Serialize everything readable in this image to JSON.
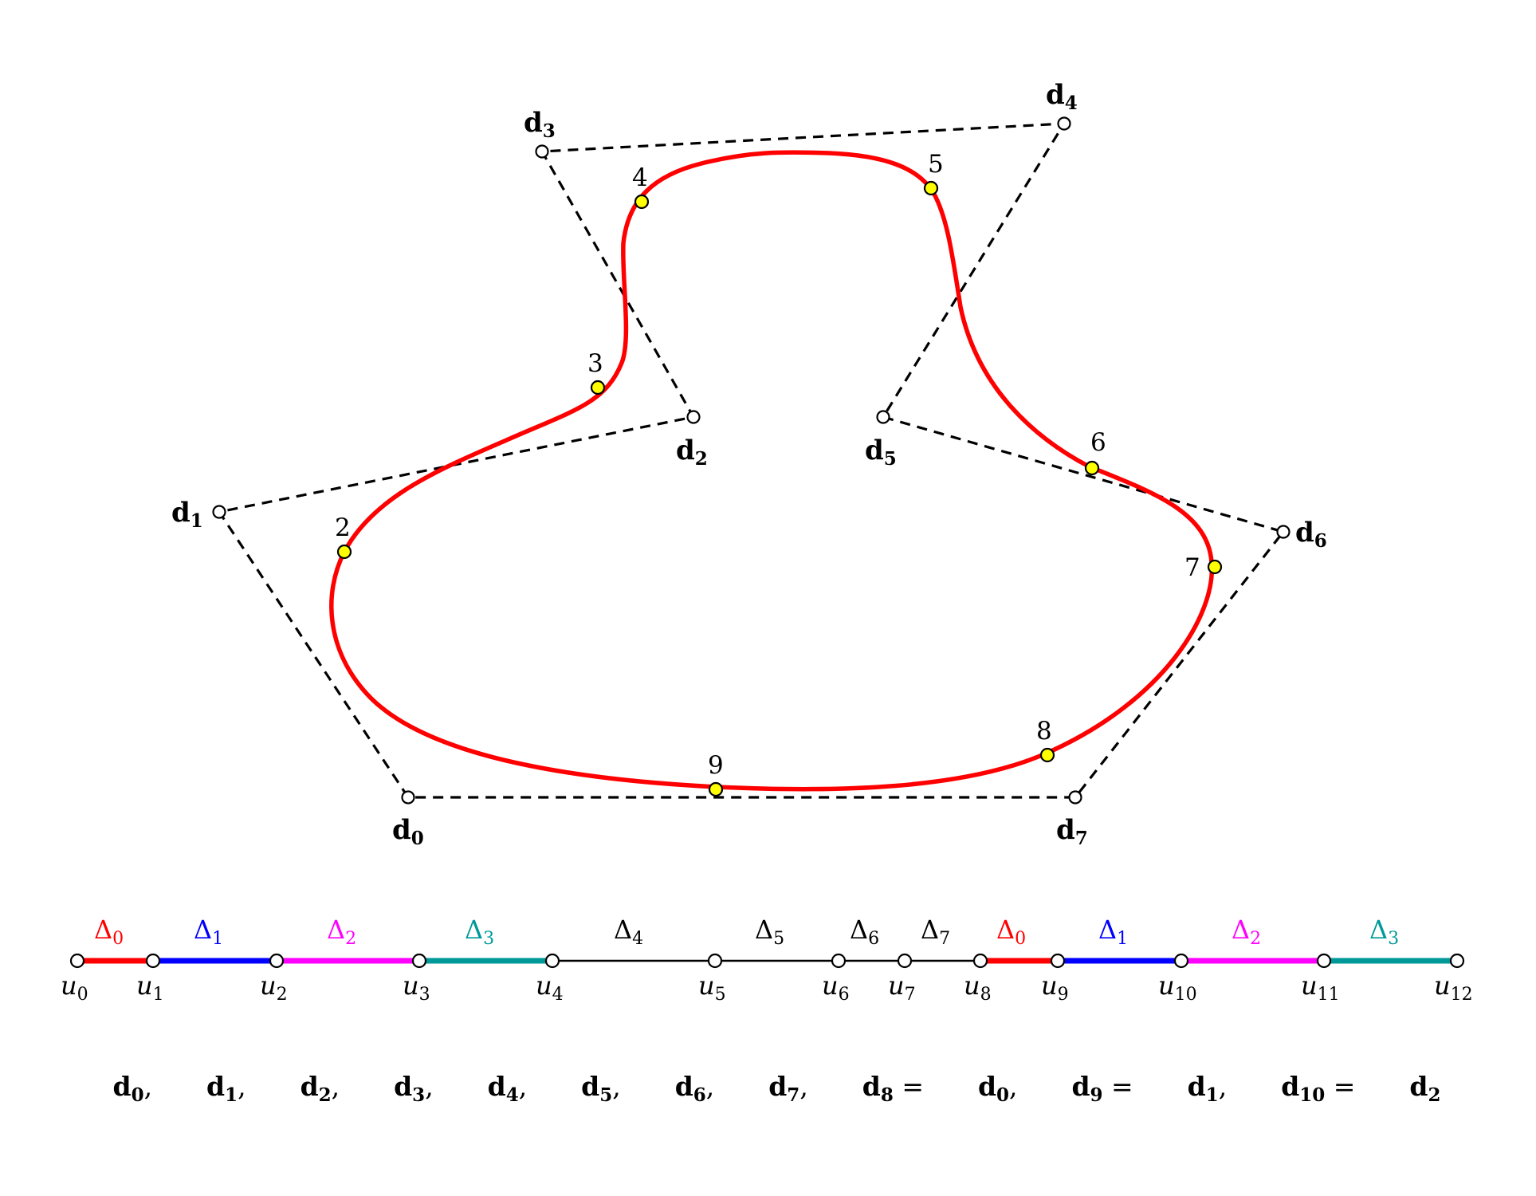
{
  "control_points": [
    {
      "id": "d0",
      "label": "d",
      "sub": "0"
    },
    {
      "id": "d1",
      "label": "d",
      "sub": "1"
    },
    {
      "id": "d2",
      "label": "d",
      "sub": "2"
    },
    {
      "id": "d3",
      "label": "d",
      "sub": "3"
    },
    {
      "id": "d4",
      "label": "d",
      "sub": "4"
    },
    {
      "id": "d5",
      "label": "d",
      "sub": "5"
    },
    {
      "id": "d6",
      "label": "d",
      "sub": "6"
    },
    {
      "id": "d7",
      "label": "d",
      "sub": "7"
    }
  ],
  "curve_points": [
    "2",
    "3",
    "4",
    "5",
    "6",
    "7",
    "8",
    "9"
  ],
  "knots": [
    {
      "label": "u",
      "sub": "0"
    },
    {
      "label": "u",
      "sub": "1"
    },
    {
      "label": "u",
      "sub": "2"
    },
    {
      "label": "u",
      "sub": "3"
    },
    {
      "label": "u",
      "sub": "4"
    },
    {
      "label": "u",
      "sub": "5"
    },
    {
      "label": "u",
      "sub": "6"
    },
    {
      "label": "u",
      "sub": "7"
    },
    {
      "label": "u",
      "sub": "8"
    },
    {
      "label": "u",
      "sub": "9"
    },
    {
      "label": "u",
      "sub": "10"
    },
    {
      "label": "u",
      "sub": "11"
    },
    {
      "label": "u",
      "sub": "12"
    }
  ],
  "intervals": [
    {
      "label": "Δ",
      "sub": "0",
      "color": "#ff0000"
    },
    {
      "label": "Δ",
      "sub": "1",
      "color": "#0000ff"
    },
    {
      "label": "Δ",
      "sub": "2",
      "color": "#ff00ff"
    },
    {
      "label": "Δ",
      "sub": "3",
      "color": "#009999"
    },
    {
      "label": "Δ",
      "sub": "4",
      "color": "#000000"
    },
    {
      "label": "Δ",
      "sub": "5",
      "color": "#000000"
    },
    {
      "label": "Δ",
      "sub": "6",
      "color": "#000000"
    },
    {
      "label": "Δ",
      "sub": "7",
      "color": "#000000"
    },
    {
      "label": "Δ",
      "sub": "0",
      "color": "#ff0000"
    },
    {
      "label": "Δ",
      "sub": "1",
      "color": "#0000ff"
    },
    {
      "label": "Δ",
      "sub": "2",
      "color": "#ff00ff"
    },
    {
      "label": "Δ",
      "sub": "3",
      "color": "#009999"
    }
  ],
  "formula_parts": [
    {
      "label": "d",
      "sub": "0",
      "tail": ", "
    },
    {
      "label": "d",
      "sub": "1",
      "tail": ", "
    },
    {
      "label": "d",
      "sub": "2",
      "tail": ", "
    },
    {
      "label": "d",
      "sub": "3",
      "tail": ", "
    },
    {
      "label": "d",
      "sub": "4",
      "tail": ", "
    },
    {
      "label": "d",
      "sub": "5",
      "tail": ", "
    },
    {
      "label": "d",
      "sub": "6",
      "tail": ", "
    },
    {
      "label": "d",
      "sub": "7",
      "tail": ", "
    },
    {
      "label": "d",
      "sub": "8",
      "tail": " = "
    },
    {
      "label": "d",
      "sub": "0",
      "tail": ", "
    },
    {
      "label": "d",
      "sub": "9",
      "tail": " = "
    },
    {
      "label": "d",
      "sub": "1",
      "tail": ", "
    },
    {
      "label": "d",
      "sub": "10",
      "tail": " = "
    },
    {
      "label": "d",
      "sub": "2",
      "tail": ""
    }
  ],
  "colors": {
    "curve": "#ff0000",
    "curve_point_fill": "#ffff00",
    "polygon": "#000000"
  }
}
